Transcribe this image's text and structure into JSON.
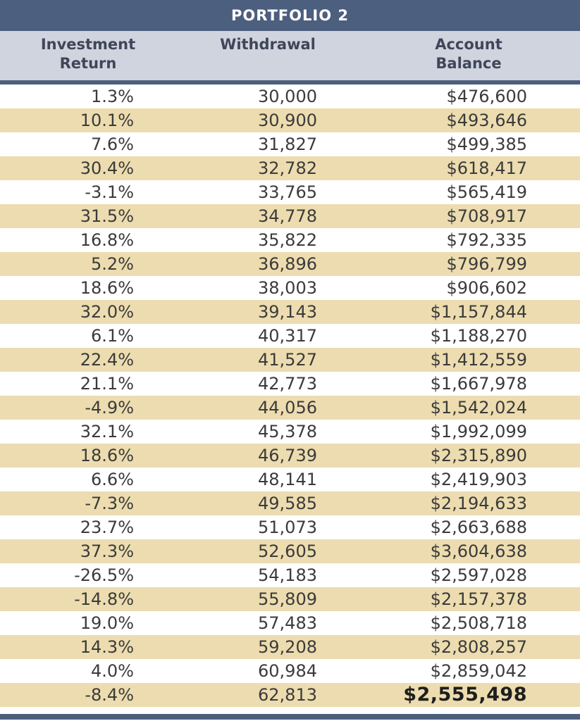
{
  "table": {
    "title": "PORTFOLIO 2",
    "headers": [
      "Investment\nReturn",
      "Withdrawal",
      "Account\nBalance"
    ],
    "rows": [
      [
        "1.3%",
        "30,000",
        "$476,600"
      ],
      [
        "10.1%",
        "30,900",
        "$493,646"
      ],
      [
        "7.6%",
        "31,827",
        "$499,385"
      ],
      [
        "30.4%",
        "32,782",
        "$618,417"
      ],
      [
        "-3.1%",
        "33,765",
        "$565,419"
      ],
      [
        "31.5%",
        "34,778",
        "$708,917"
      ],
      [
        "16.8%",
        "35,822",
        "$792,335"
      ],
      [
        "5.2%",
        "36,896",
        "$796,799"
      ],
      [
        "18.6%",
        "38,003",
        "$906,602"
      ],
      [
        "32.0%",
        "39,143",
        "$1,157,844"
      ],
      [
        "6.1%",
        "40,317",
        "$1,188,270"
      ],
      [
        "22.4%",
        "41,527",
        "$1,412,559"
      ],
      [
        "21.1%",
        "42,773",
        "$1,667,978"
      ],
      [
        "-4.9%",
        "44,056",
        "$1,542,024"
      ],
      [
        "32.1%",
        "45,378",
        "$1,992,099"
      ],
      [
        "18.6%",
        "46,739",
        "$2,315,890"
      ],
      [
        "6.6%",
        "48,141",
        "$2,419,903"
      ],
      [
        "-7.3%",
        "49,585",
        "$2,194,633"
      ],
      [
        "23.7%",
        "51,073",
        "$2,663,688"
      ],
      [
        "37.3%",
        "52,605",
        "$3,604,638"
      ],
      [
        "-26.5%",
        "54,183",
        "$2,597,028"
      ],
      [
        "-14.8%",
        "55,809",
        "$2,157,378"
      ],
      [
        "19.0%",
        "57,483",
        "$2,508,718"
      ],
      [
        "14.3%",
        "59,208",
        "$2,808,257"
      ],
      [
        "4.0%",
        "60,984",
        "$2,859,042"
      ],
      [
        "-8.4%",
        "62,813",
        "$2,555,498"
      ]
    ]
  },
  "colors": {
    "header_bar": "#4d5f7e",
    "header_row": "#cfd4df",
    "stripe": "#ecdcaf",
    "text": "#3b3b3b"
  }
}
